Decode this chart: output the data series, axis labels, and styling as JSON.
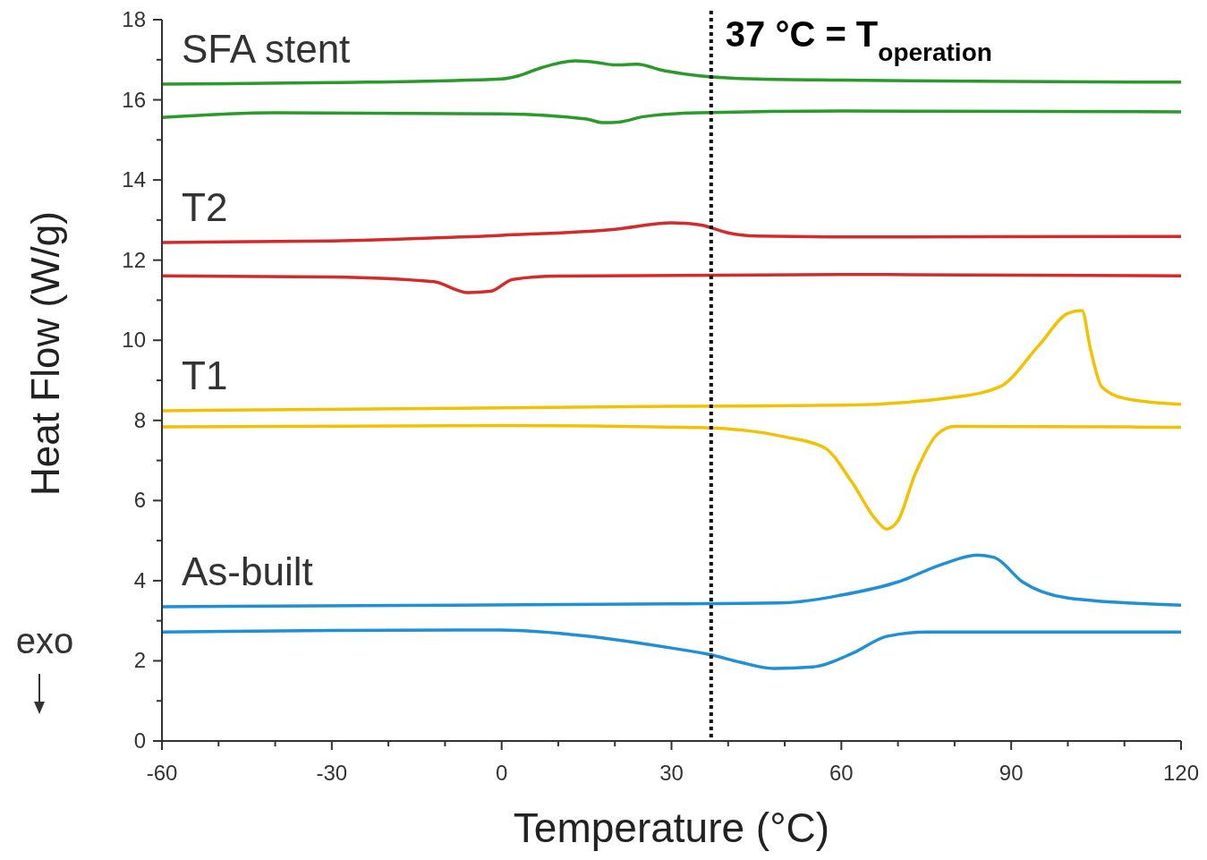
{
  "chart_data": {
    "type": "line",
    "xlabel": "Temperature (°C)",
    "ylabel": "Heat Flow (W/g)",
    "xlim": [
      -60,
      120
    ],
    "ylim": [
      0,
      18
    ],
    "xticks": [
      -60,
      {
        "value": -50,
        "label": null
      },
      {
        "value": -40,
        "label": null
      },
      -30,
      {
        "value": -20,
        "label": null
      },
      {
        "value": -10,
        "label": null
      },
      0,
      {
        "value": 10,
        "label": null
      },
      {
        "value": 20,
        "label": null
      },
      30,
      {
        "value": 40,
        "label": null
      },
      {
        "value": 50,
        "label": null
      },
      60,
      {
        "value": 70,
        "label": null
      },
      {
        "value": 80,
        "label": null
      },
      90,
      {
        "value": 100,
        "label": null
      },
      {
        "value": 110,
        "label": null
      },
      120
    ],
    "yticks": [
      0,
      {
        "value": 1,
        "label": null
      },
      2,
      {
        "value": 3,
        "label": null
      },
      4,
      {
        "value": 5,
        "label": null
      },
      6,
      {
        "value": 7,
        "label": null
      },
      8,
      {
        "value": 9,
        "label": null
      },
      10,
      {
        "value": 11,
        "label": null
      },
      12,
      {
        "value": 13,
        "label": null
      },
      14,
      {
        "value": 15,
        "label": null
      },
      16,
      {
        "value": 17,
        "label": null
      },
      18
    ],
    "grid": false,
    "marker": "none",
    "line_style": "solid",
    "series": [
      {
        "name": "SFA stent",
        "color": "#2a9a2a",
        "x": [
          -60,
          -30,
          0,
          3,
          7,
          13,
          17,
          20,
          24,
          28,
          35,
          45,
          60,
          90,
          120
        ],
        "values": [
          16.39,
          16.43,
          16.52,
          16.6,
          16.8,
          16.97,
          16.93,
          16.87,
          16.89,
          16.75,
          16.6,
          16.52,
          16.49,
          16.46,
          16.44
        ]
      },
      {
        "color": "#2a9a2a",
        "x": [
          -60,
          -40,
          0,
          15,
          18,
          21,
          25,
          35,
          60,
          120
        ],
        "values": [
          15.56,
          15.68,
          15.65,
          15.52,
          15.43,
          15.45,
          15.58,
          15.68,
          15.72,
          15.7
        ]
      },
      {
        "name": "T2",
        "color": "#d42a2a",
        "x": [
          -60,
          -30,
          0,
          20,
          30,
          35,
          40,
          45,
          60,
          120
        ],
        "values": [
          12.44,
          12.48,
          12.62,
          12.77,
          12.93,
          12.88,
          12.68,
          12.6,
          12.58,
          12.59
        ]
      },
      {
        "color": "#d42a2a",
        "x": [
          -60,
          -30,
          -12,
          -6,
          -2,
          2,
          10,
          60,
          120
        ],
        "values": [
          11.61,
          11.58,
          11.46,
          11.19,
          11.22,
          11.52,
          11.6,
          11.64,
          11.61
        ]
      },
      {
        "name": "T1",
        "color": "#f2c200",
        "x": [
          -60,
          30,
          60,
          80,
          88,
          95,
          100,
          102.5,
          104,
          106,
          110,
          120
        ],
        "values": [
          8.24,
          8.35,
          8.38,
          8.58,
          8.84,
          9.89,
          10.67,
          10.74,
          9.78,
          8.84,
          8.55,
          8.4
        ]
      },
      {
        "color": "#f2c200",
        "x": [
          -60,
          0,
          35,
          50,
          57,
          62,
          66,
          68,
          70,
          73,
          77,
          80,
          120
        ],
        "values": [
          7.84,
          7.87,
          7.82,
          7.59,
          7.32,
          6.43,
          5.54,
          5.29,
          5.5,
          6.65,
          7.66,
          7.85,
          7.83
        ]
      },
      {
        "name": "As-built",
        "color": "#1f8fd6",
        "x": [
          -60,
          30,
          50,
          60,
          70,
          78,
          84,
          87,
          92,
          100,
          120
        ],
        "values": [
          3.35,
          3.42,
          3.45,
          3.64,
          3.97,
          4.42,
          4.64,
          4.58,
          3.97,
          3.57,
          3.39
        ]
      },
      {
        "color": "#1f8fd6",
        "x": [
          -60,
          -30,
          0,
          15,
          30,
          37,
          42,
          48,
          55,
          62,
          68,
          75,
          120
        ],
        "values": [
          2.72,
          2.76,
          2.77,
          2.62,
          2.32,
          2.15,
          1.97,
          1.81,
          1.85,
          2.19,
          2.61,
          2.72,
          2.72
        ]
      }
    ],
    "ref_lines": [
      {
        "axis": "x",
        "value": 37,
        "label": "37 °C = T$_{operation}$",
        "color": "#000000",
        "line_style": "dotted"
      }
    ],
    "annotations": [
      "exo"
    ]
  }
}
